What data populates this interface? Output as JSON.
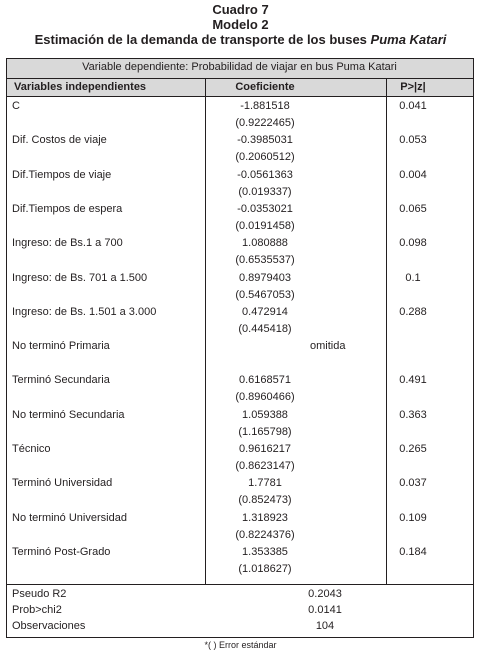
{
  "title": {
    "line1": "Cuadro 7",
    "line2": "Modelo 2",
    "line3_prefix": "Estimación de la demanda de transporte de los buses ",
    "line3_italic": "Puma Katari"
  },
  "dependent_variable": "Variable dependiente: Probabilidad de viajar en bus Puma Katari",
  "headers": {
    "variables": "Variables independientes",
    "coefficient": "Coeficiente",
    "pvalue": "P>|z|"
  },
  "rows": [
    {
      "name": "C",
      "coef": "-1.881518",
      "se": "(0.9222465)",
      "p": "0.041"
    },
    {
      "name": "Dif. Costos de viaje",
      "coef": "-0.3985031",
      "se": "(0.2060512)",
      "p": "0.053"
    },
    {
      "name": "Dif.Tiempos de viaje",
      "coef": "-0.0561363",
      "se": "(0.019337)",
      "p": "0.004"
    },
    {
      "name": "Dif.Tiempos de espera",
      "coef": "-0.0353021",
      "se": "(0.0191458)",
      "p": "0.065"
    },
    {
      "name": "Ingreso: de Bs.1 a 700",
      "coef": "1.080888",
      "se": "(0.6535537)",
      "p": "0.098"
    },
    {
      "name": "Ingreso: de Bs. 701 a 1.500",
      "coef": "0.8979403",
      "se": "(0.5467053)",
      "p": "0.1"
    },
    {
      "name": "Ingreso: de Bs. 1.501 a 3.000",
      "coef": "0.472914",
      "se": "(0.445418)",
      "p": "0.288"
    },
    {
      "name": "No terminó Primaria",
      "omitted": "omitida"
    },
    {
      "name": "Terminó Secundaria",
      "coef": "0.6168571",
      "se": "(0.8960466)",
      "p": "0.491"
    },
    {
      "name": "No terminó Secundaria",
      "coef": "1.059388",
      "se": "(1.165798)",
      "p": "0.363"
    },
    {
      "name": "Técnico",
      "coef": "0.9616217",
      "se": "(0.8623147)",
      "p": "0.265"
    },
    {
      "name": "Terminó Universidad",
      "coef": "1.7781",
      "se": "(0.852473)",
      "p": "0.037"
    },
    {
      "name": "No terminó Universidad",
      "coef": "1.318923",
      "se": "(0.8224376)",
      "p": "0.109"
    },
    {
      "name": "Terminó Post-Grado",
      "coef": "1.353385",
      "se": "(1.018627)",
      "p": "0.184"
    }
  ],
  "footer": [
    {
      "label": "Pseudo R2",
      "value": "0.2043"
    },
    {
      "label": "Prob>chi2",
      "value": "0.0141"
    },
    {
      "label": "Observaciones",
      "value": "104"
    }
  ],
  "note": "*( ) Error estándar"
}
